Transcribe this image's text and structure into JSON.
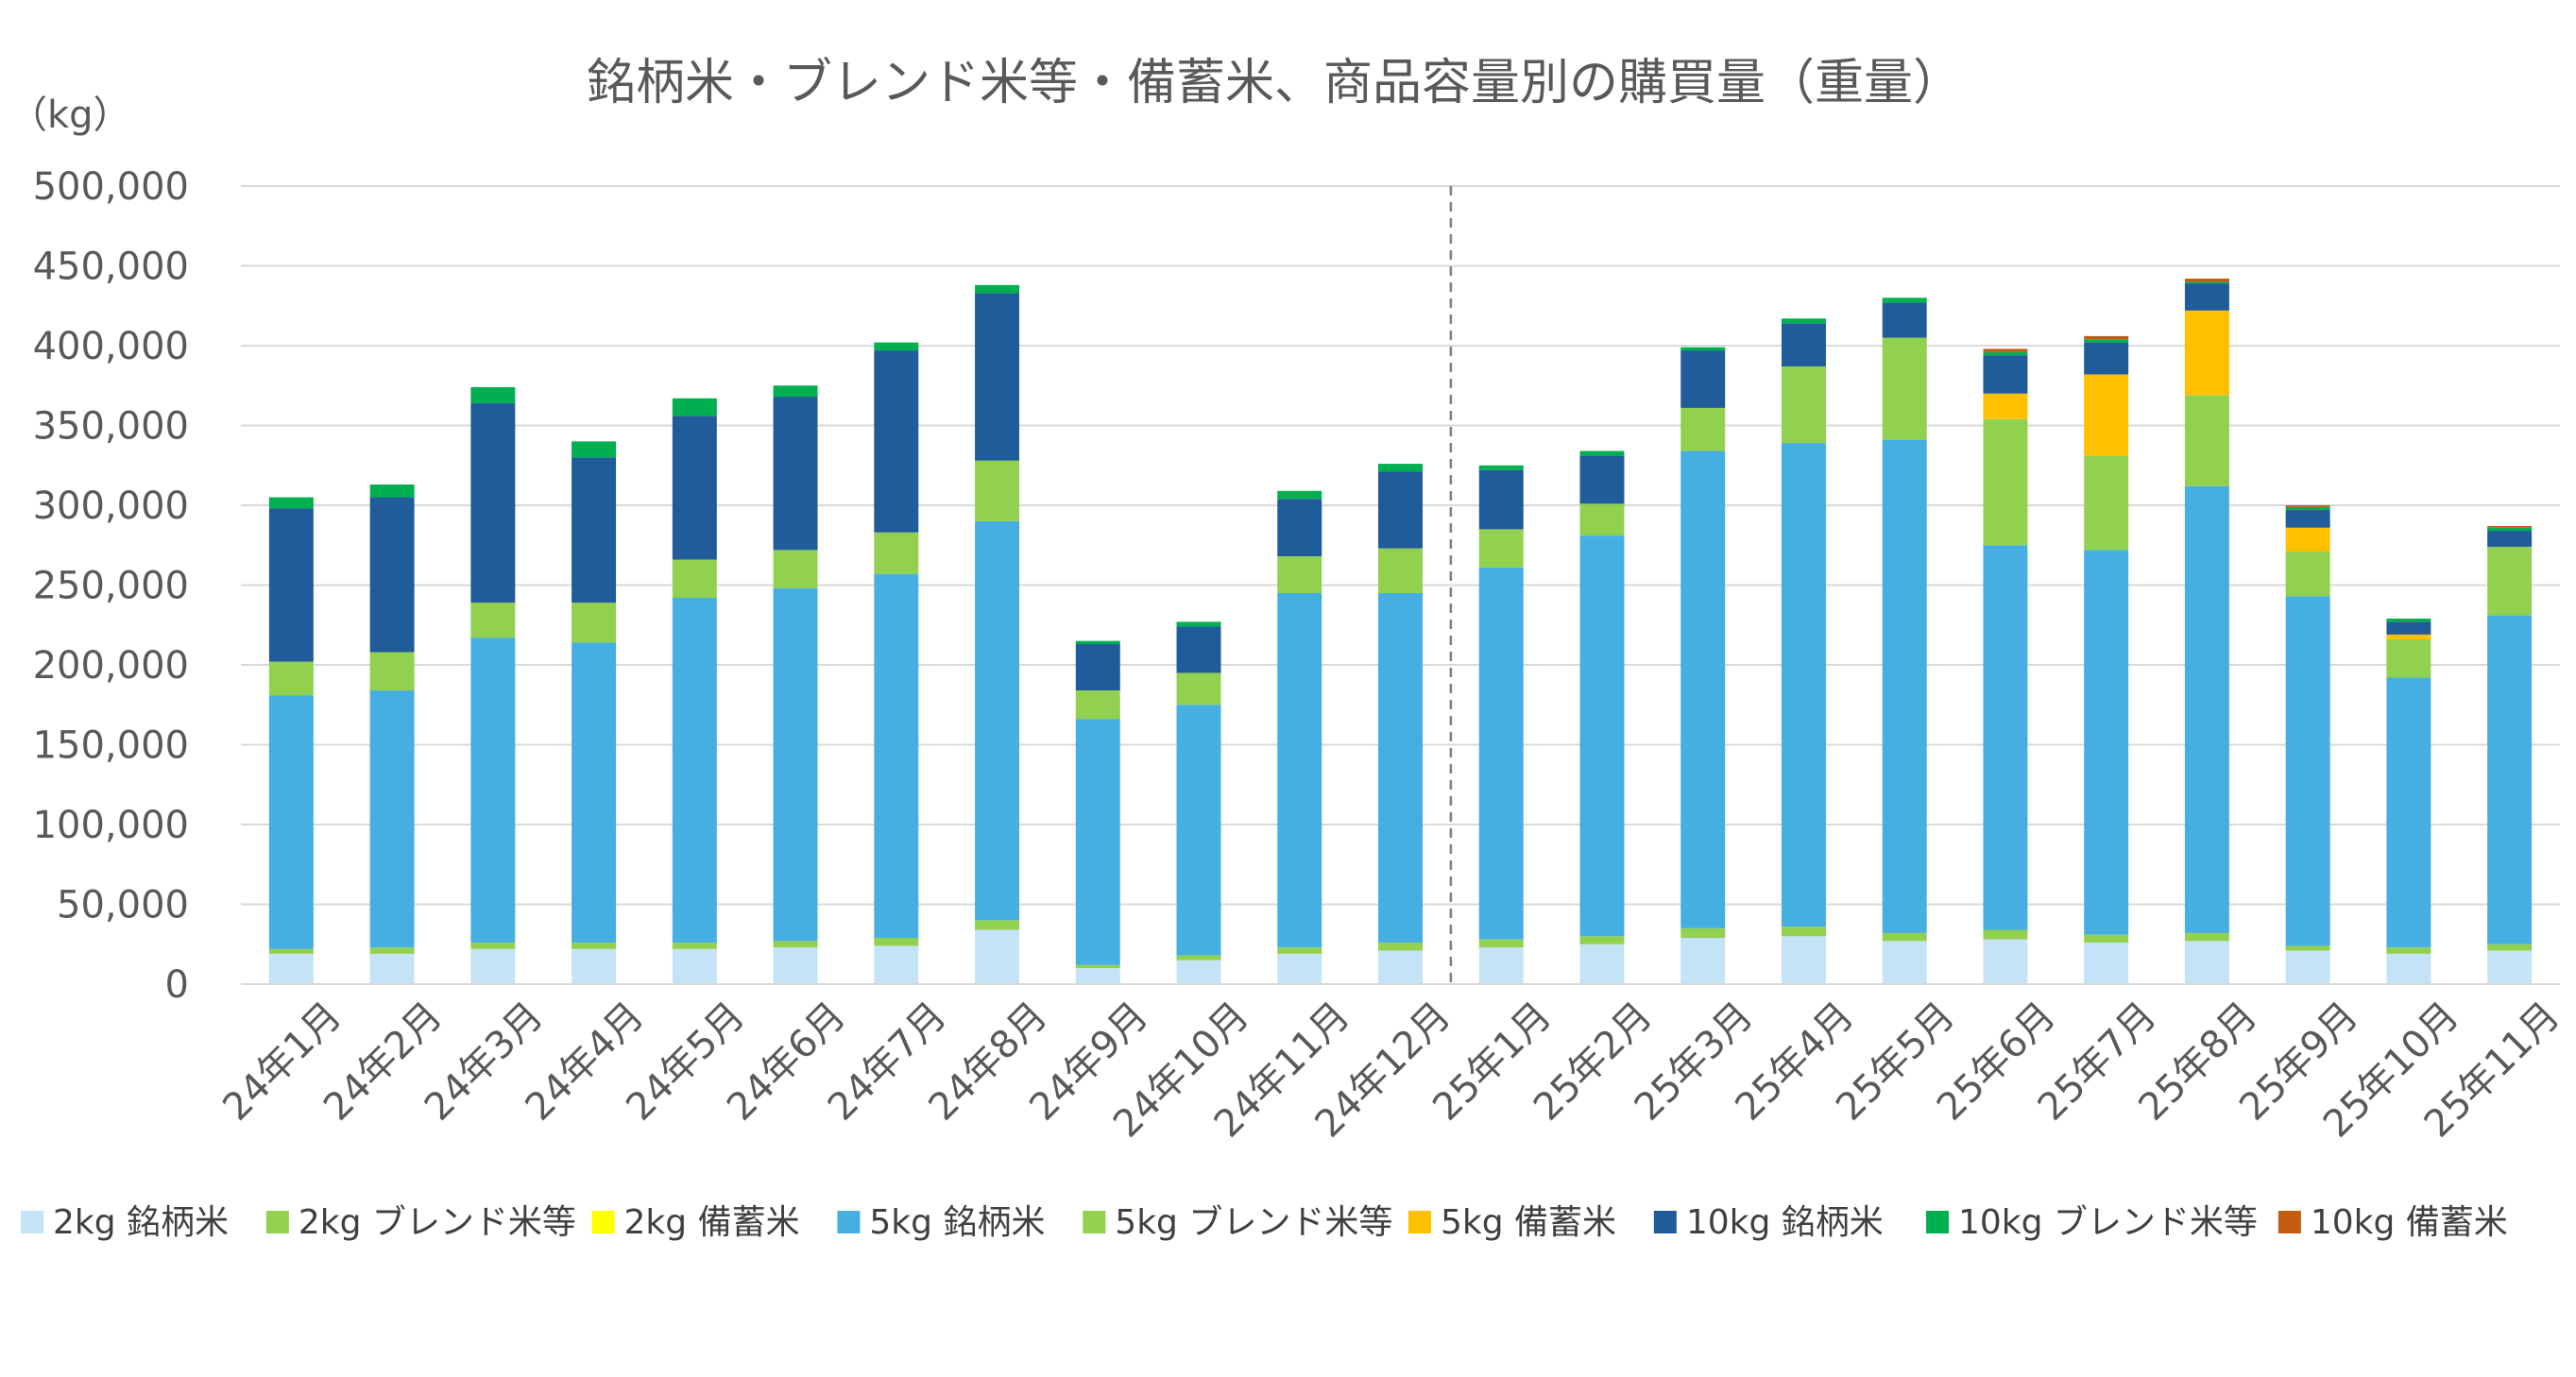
{
  "chart_data": {
    "type": "bar",
    "stacked": true,
    "title": "銘柄米・ブレンド米等・備蓄米、商品容量別の購買量（重量）",
    "ylabel": "（kg）",
    "xlabel": "",
    "ylim": [
      0,
      500000
    ],
    "ytick_step": 50000,
    "yticks": [
      "0",
      "50,000",
      "100,000",
      "150,000",
      "200,000",
      "250,000",
      "300,000",
      "350,000",
      "400,000",
      "450,000",
      "500,000"
    ],
    "grid": true,
    "legend_position": "bottom",
    "divider_after_category": "24年12月",
    "categories": [
      "24年1月",
      "24年2月",
      "24年3月",
      "24年4月",
      "24年5月",
      "24年6月",
      "24年7月",
      "24年8月",
      "24年9月",
      "24年10月",
      "24年11月",
      "24年12月",
      "25年1月",
      "25年2月",
      "25年3月",
      "25年4月",
      "25年5月",
      "25年6月",
      "25年7月",
      "25年8月",
      "25年9月",
      "25年10月",
      "25年11月"
    ],
    "series": [
      {
        "name": "2kg 銘柄米",
        "color": "#C5E3F6",
        "values": [
          19000,
          19000,
          22000,
          22000,
          22000,
          23000,
          24000,
          34000,
          10000,
          15000,
          19000,
          21000,
          23000,
          25000,
          29000,
          30000,
          27000,
          28000,
          26000,
          27000,
          21000,
          19000,
          21000
        ]
      },
      {
        "name": "2kg ブレンド米等",
        "color": "#92D050",
        "values": [
          3000,
          4000,
          4000,
          4000,
          4000,
          4000,
          5000,
          6000,
          2000,
          3000,
          4000,
          5000,
          5000,
          5000,
          6000,
          6000,
          5000,
          6000,
          5000,
          5000,
          3000,
          4000,
          4000
        ]
      },
      {
        "name": "2kg 備蓄米",
        "color": "#FFFF00",
        "values": [
          0,
          0,
          0,
          0,
          0,
          0,
          0,
          0,
          0,
          0,
          0,
          0,
          0,
          0,
          0,
          0,
          0,
          0,
          0,
          0,
          0,
          0,
          0
        ]
      },
      {
        "name": "5kg 銘柄米",
        "color": "#45AFE1",
        "values": [
          159000,
          161000,
          191000,
          188000,
          216000,
          221000,
          228000,
          250000,
          154000,
          157000,
          222000,
          219000,
          233000,
          251000,
          299000,
          303000,
          309000,
          241000,
          241000,
          280000,
          219000,
          169000,
          206000
        ]
      },
      {
        "name": "5kg ブレンド米等",
        "color": "#92D050",
        "values": [
          21000,
          24000,
          22000,
          25000,
          24000,
          24000,
          26000,
          38000,
          18000,
          20000,
          23000,
          28000,
          24000,
          20000,
          27000,
          48000,
          64000,
          79000,
          59000,
          57000,
          28000,
          24000,
          43000
        ]
      },
      {
        "name": "5kg 備蓄米",
        "color": "#FFC000",
        "values": [
          0,
          0,
          0,
          0,
          0,
          0,
          0,
          0,
          0,
          0,
          0,
          0,
          0,
          0,
          0,
          0,
          0,
          16000,
          51000,
          53000,
          15000,
          3000,
          0
        ]
      },
      {
        "name": "10kg 銘柄米",
        "color": "#1F5C99",
        "values": [
          96000,
          97000,
          125000,
          91000,
          90000,
          96000,
          114000,
          105000,
          29000,
          29000,
          36000,
          48000,
          37000,
          30000,
          36000,
          27000,
          22000,
          24000,
          20000,
          17000,
          11000,
          8000,
          10000
        ]
      },
      {
        "name": "10kg ブレンド米等",
        "color": "#00B050",
        "values": [
          7000,
          8000,
          10000,
          10000,
          11000,
          7000,
          5000,
          5000,
          2000,
          3000,
          5000,
          5000,
          3000,
          3000,
          2000,
          3000,
          3000,
          2000,
          2000,
          1000,
          2000,
          2000,
          2000
        ]
      },
      {
        "name": "10kg 備蓄米",
        "color": "#C55A11",
        "values": [
          0,
          0,
          0,
          0,
          0,
          0,
          0,
          0,
          0,
          0,
          0,
          0,
          0,
          0,
          0,
          0,
          0,
          2000,
          2000,
          2000,
          1000,
          0,
          1000
        ]
      }
    ]
  }
}
